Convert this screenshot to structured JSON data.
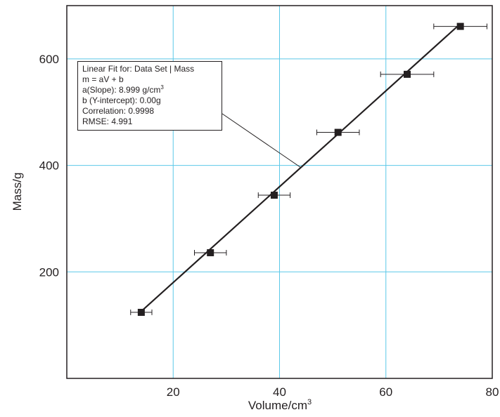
{
  "chart_data": {
    "type": "scatter",
    "xlabel": "Volume/cm",
    "xlabel_sup": "3",
    "ylabel": "Mass/g",
    "xlim": [
      0,
      80
    ],
    "ylim": [
      0,
      700
    ],
    "x_ticks": [
      20,
      40,
      60,
      80
    ],
    "y_ticks": [
      200,
      400,
      600
    ],
    "grid": true,
    "grid_color": "#5bc8e8",
    "points": [
      {
        "x": 14,
        "y": 124,
        "xerr": 2
      },
      {
        "x": 27,
        "y": 236,
        "xerr": 3
      },
      {
        "x": 39,
        "y": 344,
        "xerr": 3
      },
      {
        "x": 51,
        "y": 462,
        "xerr": 4
      },
      {
        "x": 64,
        "y": 571,
        "xerr": 5
      },
      {
        "x": 74,
        "y": 661,
        "xerr": 5
      }
    ],
    "fit": {
      "type": "linear",
      "slope": 8.999,
      "intercept": 0.0,
      "x_range": [
        14,
        74
      ],
      "lines": [
        "Linear Fit for: Data Set | Mass",
        "m = aV + b",
        "a(Slope): 8.999 g/cm",
        "b (Y-intercept): 0.00g",
        "Correlation: 0.9998",
        "RMSE: 4.991"
      ],
      "slope_unit_sup": "3"
    }
  }
}
